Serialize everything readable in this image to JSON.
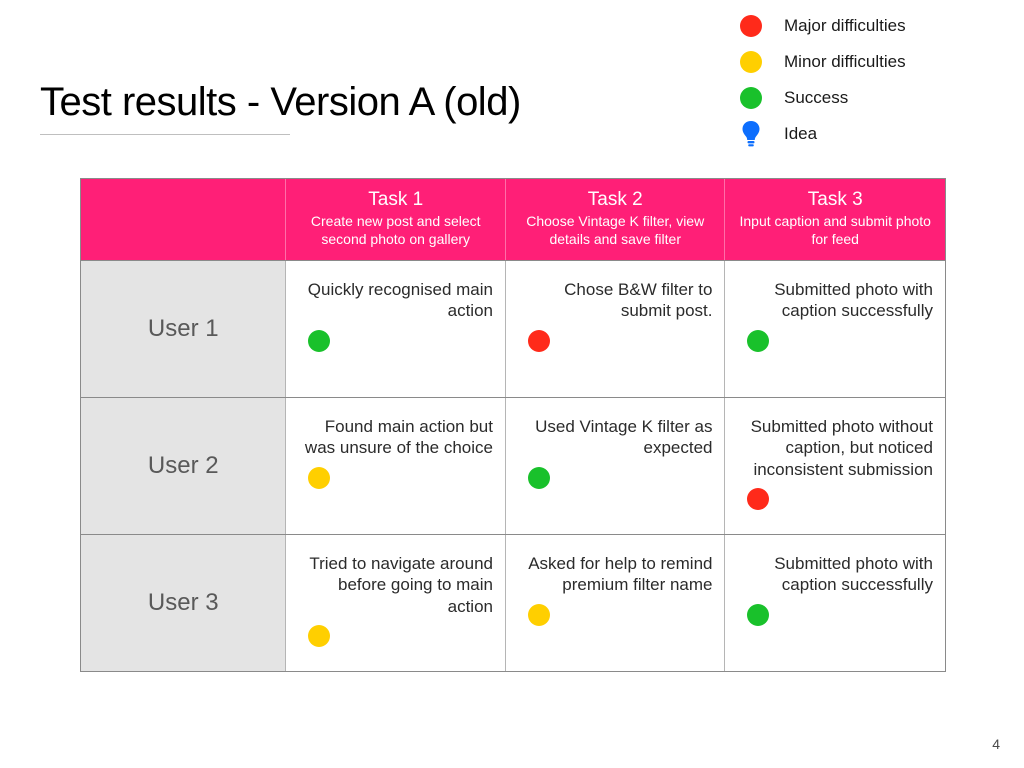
{
  "title": "Test results - Version A (old)",
  "page_number": "4",
  "colors": {
    "major": "#ff2a1a",
    "minor": "#ffcf00",
    "success": "#19c12b",
    "idea": "#0d6efd",
    "header_bg": "#ff1f77",
    "user_bg": "#e4e4e4",
    "border": "#8a8a8a"
  },
  "legend": [
    {
      "type": "dot",
      "color_key": "major",
      "label": "Major difficulties"
    },
    {
      "type": "dot",
      "color_key": "minor",
      "label": "Minor difficulties"
    },
    {
      "type": "dot",
      "color_key": "success",
      "label": "Success"
    },
    {
      "type": "bulb",
      "color_key": "idea",
      "label": "Idea"
    }
  ],
  "tasks": [
    {
      "title": "Task 1",
      "sub": "Create new post and select second photo on gallery"
    },
    {
      "title": "Task 2",
      "sub": "Choose Vintage K filter, view details and save filter"
    },
    {
      "title": "Task 3",
      "sub": "Input caption and submit photo for feed"
    }
  ],
  "users": [
    {
      "name": "User 1",
      "cells": [
        {
          "text": "Quickly recognised main action",
          "status": "success"
        },
        {
          "text": "Chose B&W filter to submit post.",
          "status": "major"
        },
        {
          "text": "Submitted photo with caption successfully",
          "status": "success"
        }
      ]
    },
    {
      "name": "User 2",
      "cells": [
        {
          "text": "Found main action but was unsure of the choice",
          "status": "minor"
        },
        {
          "text": "Used Vintage K filter as expected",
          "status": "success"
        },
        {
          "text": "Submitted photo without caption, but noticed inconsistent submission",
          "status": "major"
        }
      ]
    },
    {
      "name": "User 3",
      "cells": [
        {
          "text": "Tried to navigate around before going to main action",
          "status": "minor"
        },
        {
          "text": "Asked for help to remind premium filter name",
          "status": "minor"
        },
        {
          "text": "Submitted photo with caption successfully",
          "status": "success"
        }
      ]
    }
  ]
}
